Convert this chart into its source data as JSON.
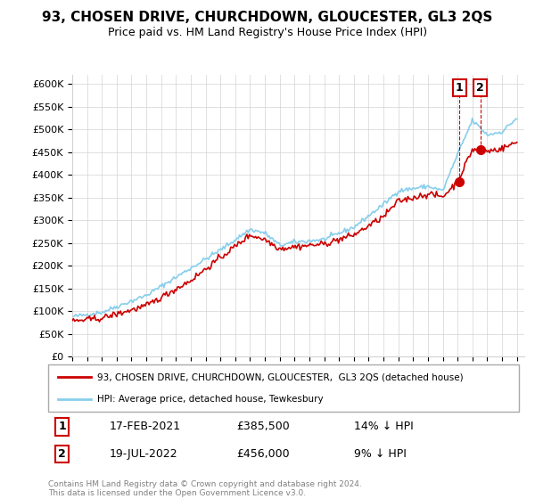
{
  "title": "93, CHOSEN DRIVE, CHURCHDOWN, GLOUCESTER, GL3 2QS",
  "subtitle": "Price paid vs. HM Land Registry's House Price Index (HPI)",
  "ylim": [
    0,
    620000
  ],
  "yticks": [
    0,
    50000,
    100000,
    150000,
    200000,
    250000,
    300000,
    350000,
    400000,
    450000,
    500000,
    550000,
    600000
  ],
  "ytick_labels": [
    "£0",
    "£50K",
    "£100K",
    "£150K",
    "£200K",
    "£250K",
    "£300K",
    "£350K",
    "£400K",
    "£450K",
    "£500K",
    "£550K",
    "£600K"
  ],
  "xlim_start": 1995.0,
  "xlim_end": 2025.5,
  "hpi_color": "#87CEEB",
  "price_color": "#CC0000",
  "marker_color": "#CC0000",
  "transaction1_date": "17-FEB-2021",
  "transaction1_price": "£385,500",
  "transaction1_hpi": "14% ↓ HPI",
  "transaction2_date": "19-JUL-2022",
  "transaction2_price": "£456,000",
  "transaction2_hpi": "9% ↓ HPI",
  "legend_line1": "93, CHOSEN DRIVE, CHURCHDOWN, GLOUCESTER,  GL3 2QS (detached house)",
  "legend_line2": "HPI: Average price, detached house, Tewkesbury",
  "footer": "Contains HM Land Registry data © Crown copyright and database right 2024.\nThis data is licensed under the Open Government Licence v3.0.",
  "transaction1_x": 2021.12,
  "transaction1_y": 385500,
  "transaction2_x": 2022.54,
  "transaction2_y": 456000,
  "hpi_anchors_x": [
    1995,
    1997,
    2000,
    2003,
    2005,
    2007,
    2008,
    2009,
    2010,
    2012,
    2014,
    2016,
    2017,
    2019,
    2020,
    2021,
    2022,
    2023,
    2024,
    2025
  ],
  "hpi_anchors_y": [
    88000,
    98000,
    135000,
    195000,
    235000,
    280000,
    272000,
    245000,
    252000,
    258000,
    285000,
    335000,
    365000,
    375000,
    365000,
    445000,
    520000,
    488000,
    495000,
    525000
  ],
  "price_anchors_x": [
    1995,
    1997,
    2000,
    2003,
    2005,
    2007,
    2008,
    2009,
    2010,
    2012,
    2014,
    2016,
    2017,
    2019,
    2020,
    2021,
    2022,
    2023,
    2024,
    2025
  ],
  "price_anchors_y": [
    78000,
    85000,
    112000,
    168000,
    218000,
    268000,
    258000,
    238000,
    242000,
    248000,
    268000,
    308000,
    342000,
    358000,
    352000,
    385500,
    456000,
    452000,
    458000,
    472000
  ]
}
